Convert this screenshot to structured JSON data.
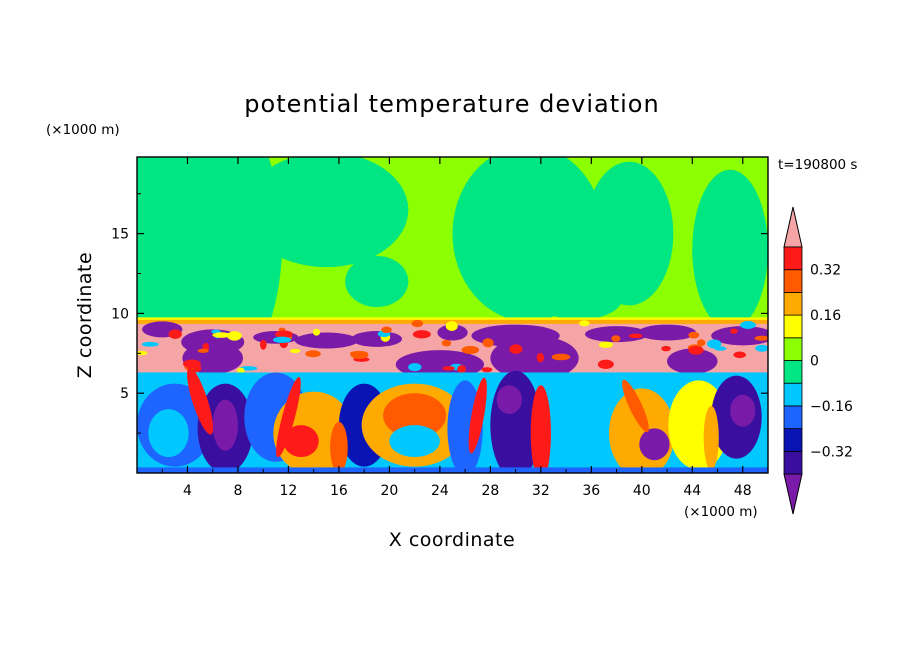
{
  "chart_data": {
    "type": "heatmap",
    "title": "potential temperature deviation",
    "xlabel": "X coordinate",
    "ylabel": "Z coordinate",
    "x_unit": "(×1000 m)",
    "y_unit": "(×1000 m)",
    "time_label": "t=190800 s",
    "xlim": [
      0,
      50
    ],
    "ylim": [
      0,
      19.8
    ],
    "x_ticks": [
      4,
      8,
      12,
      16,
      20,
      24,
      28,
      32,
      36,
      40,
      44,
      48
    ],
    "y_ticks": [
      5,
      10,
      15
    ],
    "colorbar": {
      "levels": [
        -0.4,
        -0.32,
        -0.24,
        -0.16,
        -0.08,
        0,
        0.08,
        0.16,
        0.24,
        0.32,
        0.4
      ],
      "colors": [
        "#7a1aa8",
        "#3a0fa0",
        "#0a14b4",
        "#1e64ff",
        "#00c8ff",
        "#00e682",
        "#8cff00",
        "#ffff00",
        "#ffaa00",
        "#ff5a00",
        "#ff1a1a",
        "#f5a5a5"
      ],
      "tick_labels": [
        "0.32",
        "0.16",
        "0",
        "−0.16",
        "−0.32"
      ],
      "tick_values": [
        0.32,
        0.16,
        0,
        -0.16,
        -0.32
      ],
      "extend": "both"
    },
    "field_summary": {
      "upper_layer_z": [
        9.7,
        19.8
      ],
      "upper_layer_values": [
        0.0,
        0.08
      ],
      "inversion_z": [
        6.0,
        9.7
      ],
      "inversion_values": [
        -0.4,
        0.4
      ],
      "convective_z": [
        0,
        6.5
      ],
      "convective_values": [
        -0.4,
        0.4
      ]
    }
  }
}
